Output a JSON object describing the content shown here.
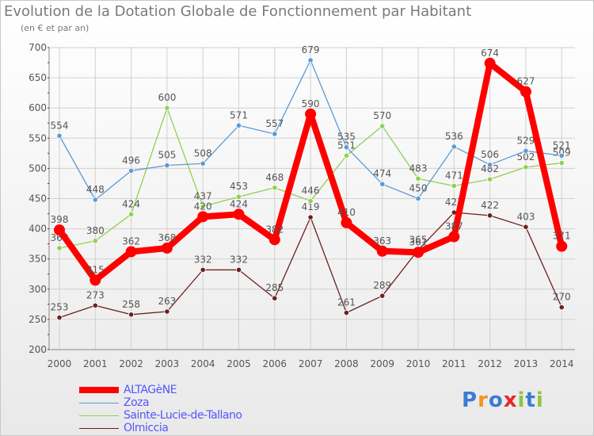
{
  "header": {
    "title": "Evolution de la Dotation Globale de Fonctionnement par Habitant",
    "subtitle": "(en € et par an)"
  },
  "logo": {
    "text": "Proxiti",
    "letters": [
      "P",
      "r",
      "o",
      "x",
      "i",
      "t",
      "i"
    ],
    "colors": [
      "#3a7bd5",
      "#f7931e",
      "#3a7bd5",
      "#e8262a",
      "#8cc63f",
      "#3a7bd5",
      "#8cc63f"
    ]
  },
  "chart_data": {
    "type": "line",
    "title": "Evolution de la Dotation Globale de Fonctionnement par Habitant",
    "subtitle": "(en € et par an)",
    "xlabel": "",
    "ylabel": "",
    "x": [
      "2000",
      "2001",
      "2002",
      "2003",
      "2004",
      "2005",
      "2006",
      "2007",
      "2008",
      "2009",
      "2010",
      "2011",
      "2012",
      "2013",
      "2014"
    ],
    "ylim": [
      200,
      700
    ],
    "yticks": [
      200,
      250,
      300,
      350,
      400,
      450,
      500,
      550,
      600,
      650,
      700
    ],
    "grid": true,
    "legend_position": "bottom-left",
    "series": [
      {
        "name": "Olmiccia",
        "color": "#6e1f1f",
        "values": [
          253,
          273,
          258,
          263,
          332,
          332,
          285,
          419,
          261,
          289,
          365,
          427,
          422,
          403,
          270
        ]
      },
      {
        "name": "Sainte-Lucie-de-Tallano",
        "color": "#8fd14f",
        "values": [
          368,
          380,
          424,
          600,
          437,
          453,
          468,
          446,
          521,
          570,
          483,
          471,
          482,
          502,
          509
        ]
      },
      {
        "name": "Zoza",
        "color": "#5b9bd5",
        "values": [
          554,
          448,
          496,
          505,
          508,
          571,
          557,
          679,
          535,
          474,
          450,
          536,
          506,
          529,
          521
        ]
      },
      {
        "name": "ALTAGèNE",
        "color": "#ff0000",
        "values": [
          398,
          315,
          362,
          368,
          420,
          424,
          382,
          590,
          410,
          363,
          361,
          387,
          674,
          627,
          371
        ]
      }
    ],
    "legend": [
      "ALTAGèNE",
      "Zoza",
      "Sainte-Lucie-de-Tallano",
      "Olmiccia"
    ]
  }
}
